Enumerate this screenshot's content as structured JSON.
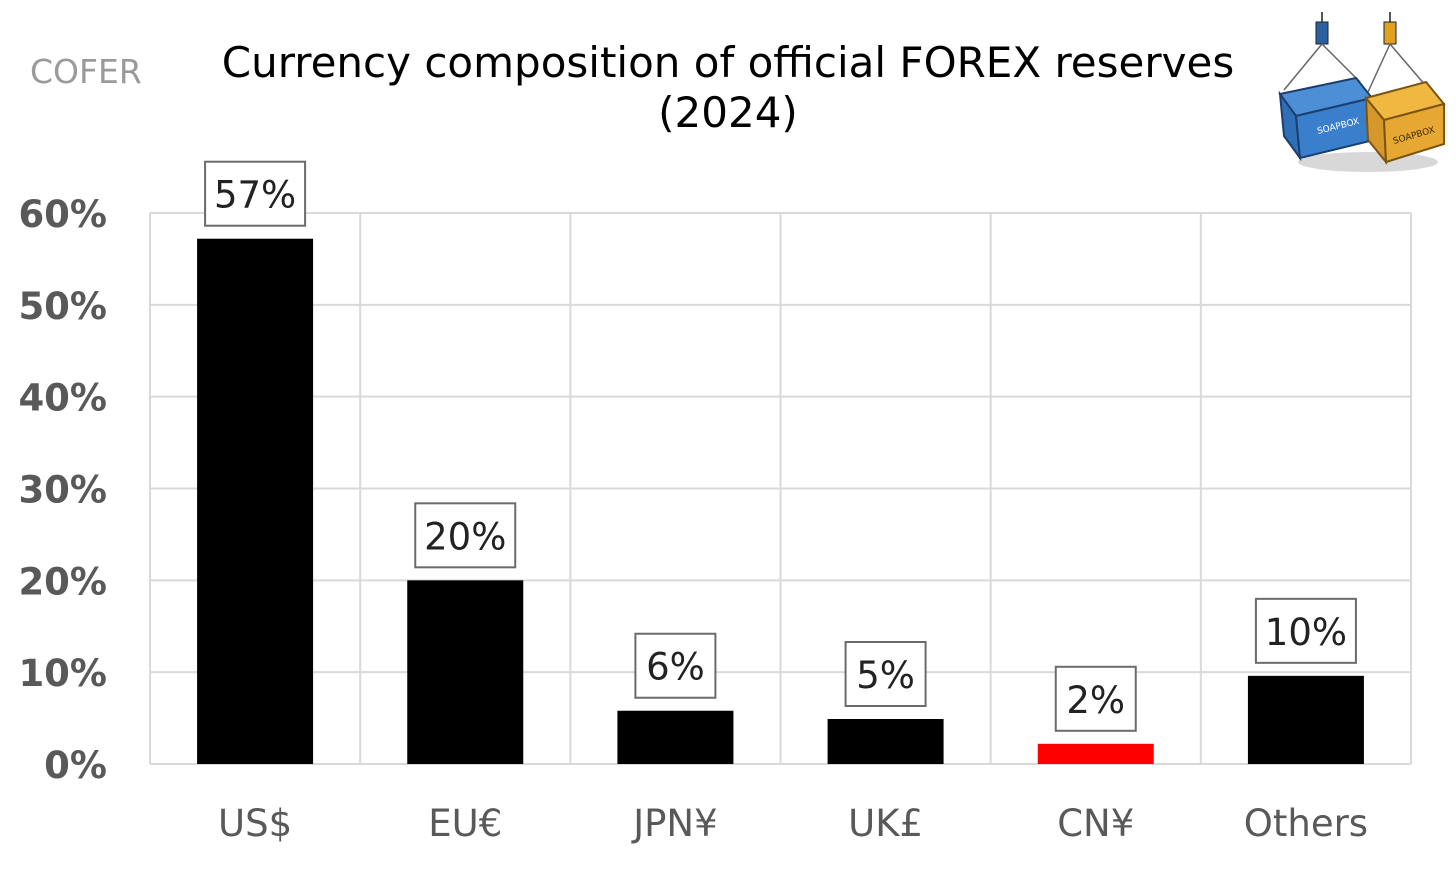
{
  "source_label": "COFER",
  "logo": {
    "box_text": "SOAPBOX"
  },
  "chart_data": {
    "type": "bar",
    "title_line1": "Currency composition of official FOREX reserves",
    "title_line2": "(2024)",
    "categories": [
      "US$",
      "EU€",
      "JPN¥",
      "UK£",
      "CN¥",
      "Others"
    ],
    "values": [
      57.2,
      20.0,
      5.8,
      4.9,
      2.2,
      9.6
    ],
    "data_labels": [
      "57%",
      "20%",
      "6%",
      "5%",
      "2%",
      "10%"
    ],
    "colors": [
      "#000000",
      "#000000",
      "#000000",
      "#000000",
      "#ff0000",
      "#000000"
    ],
    "ylim": [
      0,
      60
    ],
    "yticks": [
      0,
      10,
      20,
      30,
      40,
      50,
      60
    ],
    "ytick_labels": [
      "0%",
      "10%",
      "20%",
      "30%",
      "40%",
      "50%",
      "60%"
    ],
    "grid": true,
    "xlabel": "",
    "ylabel": ""
  }
}
